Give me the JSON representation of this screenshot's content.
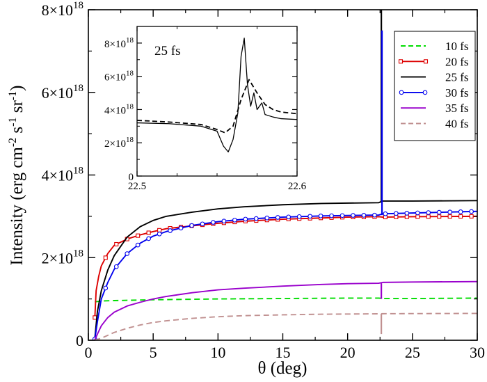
{
  "chart_data": [
    {
      "type": "line",
      "xlabel": "θ (deg)",
      "ylabel": "Intensity (erg cm⁻² s⁻¹ sr⁻¹)",
      "ylabel_parts": {
        "base": "Intensity (erg cm",
        "e1": "-2",
        "mid": " s",
        "e2": "-1",
        "mid2": " sr",
        "e3": "-1",
        "end": ")"
      },
      "xlim": [
        0,
        30
      ],
      "ylim": [
        0,
        8e+18
      ],
      "xticks": [
        0,
        5,
        10,
        15,
        20,
        25,
        30
      ],
      "yticks": [
        0,
        2e+18,
        4e+18,
        6e+18,
        8e+18
      ],
      "ytick_labels": [
        {
          "mant": "0",
          "exp": ""
        },
        {
          "mant": "2×10",
          "exp": "18"
        },
        {
          "mant": "4×10",
          "exp": "18"
        },
        {
          "mant": "6×10",
          "exp": "18"
        },
        {
          "mant": "8×10",
          "exp": "18"
        }
      ],
      "legend_position": "top-right",
      "series": [
        {
          "name": "10 fs",
          "color": "#00dd00",
          "dash": "dashed",
          "marker": "none",
          "x": [
            0.5,
            1,
            2,
            5,
            10,
            15,
            20,
            22.4,
            22.7,
            25,
            30
          ],
          "y": [
            9.3e+17,
            9.5e+17,
            9.6e+17,
            9.8e+17,
            1e+18,
            1.01e+18,
            1.02e+18,
            1.02e+18,
            1.01e+18,
            1.01e+18,
            1.02e+18
          ]
        },
        {
          "name": "20 fs",
          "color": "#dd0000",
          "dash": "solid",
          "marker": "square",
          "x": [
            0.5,
            0.6,
            0.8,
            1,
            1.5,
            2,
            3,
            4,
            5,
            6,
            8,
            10,
            12,
            15,
            18,
            20,
            22.4,
            22.7,
            25,
            30
          ],
          "y": [
            5.5e+17,
            1.2e+18,
            1.55e+18,
            1.8e+18,
            2.1e+18,
            2.3e+18,
            2.45e+18,
            2.55e+18,
            2.63e+18,
            2.7e+18,
            2.77e+18,
            2.83e+18,
            2.88e+18,
            2.93e+18,
            2.96e+18,
            2.98e+18,
            2.99e+18,
            2.98e+18,
            2.99e+18,
            3e+18
          ]
        },
        {
          "name": "25 fs",
          "color": "#000000",
          "dash": "solid",
          "marker": "none",
          "x": [
            0.5,
            0.7,
            1,
            1.5,
            2,
            3,
            4,
            5,
            6,
            8,
            10,
            12,
            15,
            18,
            20,
            22.4,
            22.7,
            25,
            30
          ],
          "y": [
            5e+16,
            7e+17,
            1.2e+18,
            1.7e+18,
            2.05e+18,
            2.5e+18,
            2.75e+18,
            2.9e+18,
            3e+18,
            3.1e+18,
            3.18e+18,
            3.23e+18,
            3.28e+18,
            3.31e+18,
            3.32e+18,
            3.33e+18,
            3.37e+18,
            3.37e+18,
            3.38e+18
          ]
        },
        {
          "name": "30 fs",
          "color": "#0000ee",
          "dash": "solid",
          "marker": "circle",
          "x": [
            0.5,
            0.7,
            1,
            1.5,
            2,
            3,
            4,
            5,
            6,
            8,
            10,
            12,
            15,
            18,
            20,
            22.4,
            22.7,
            25,
            30
          ],
          "y": [
            3e+16,
            4.5e+17,
            1e+18,
            1.4e+18,
            1.72e+18,
            2.1e+18,
            2.35e+18,
            2.52e+18,
            2.63e+18,
            2.78e+18,
            2.87e+18,
            2.93e+18,
            2.98e+18,
            3.01e+18,
            3.02e+18,
            3.03e+18,
            3.06e+18,
            3.08e+18,
            3.12e+18
          ]
        },
        {
          "name": "35 fs",
          "color": "#9900cc",
          "dash": "solid",
          "marker": "none",
          "x": [
            0.5,
            0.7,
            1,
            1.5,
            2,
            3,
            4,
            5,
            6,
            8,
            10,
            12,
            15,
            18,
            20,
            22.4,
            22.7,
            25,
            30
          ],
          "y": [
            1e+16,
            1.5e+17,
            3.5e+17,
            5.5e+17,
            6.8e+17,
            8.3e+17,
            9.2e+17,
            1e+18,
            1.06e+18,
            1.15e+18,
            1.22e+18,
            1.26e+18,
            1.31e+18,
            1.35e+18,
            1.37e+18,
            1.38e+18,
            1.4e+18,
            1.41e+18,
            1.42e+18
          ]
        },
        {
          "name": "40 fs",
          "color": "#c09090",
          "dash": "dashed",
          "marker": "none",
          "x": [
            0.5,
            1,
            2,
            3,
            4,
            5,
            6,
            8,
            10,
            12,
            15,
            18,
            20,
            22.4,
            22.7,
            25,
            30
          ],
          "y": [
            0,
            5e+16,
            1.9e+17,
            2.9e+17,
            3.7e+17,
            4.3e+17,
            4.7e+17,
            5.3e+17,
            5.7e+17,
            5.95e+17,
            6.15e+17,
            6.3e+17,
            6.35e+17,
            6.4e+17,
            6.42e+17,
            6.45e+17,
            6.5e+17
          ]
        }
      ],
      "spikes": [
        {
          "series": "25 fs",
          "x": 22.6,
          "y": 8e+18
        },
        {
          "series": "30 fs",
          "x": 22.65,
          "y": 7.5e+18
        },
        {
          "series": "35 fs",
          "x": 22.6,
          "y": 1e+18
        },
        {
          "series": "40 fs",
          "x": 22.6,
          "y": 1.5e+17
        }
      ]
    },
    {
      "type": "line",
      "inset": true,
      "label": "25 fs",
      "xlim": [
        22.5,
        22.6
      ],
      "ylim": [
        0,
        9e+18
      ],
      "xticks": [
        22.5,
        22.6
      ],
      "yticks": [
        0,
        2e+18,
        4e+18,
        6e+18,
        8e+18
      ],
      "ytick_labels": [
        {
          "mant": "0",
          "exp": ""
        },
        {
          "mant": "2×10",
          "exp": "18"
        },
        {
          "mant": "4×10",
          "exp": "18"
        },
        {
          "mant": "6×10",
          "exp": "18"
        },
        {
          "mant": "8×10",
          "exp": "18"
        }
      ],
      "series": [
        {
          "style": "dashed",
          "color": "#000000",
          "x": [
            22.5,
            22.52,
            22.54,
            22.55,
            22.555,
            22.56,
            22.565,
            22.57,
            22.575,
            22.58,
            22.585,
            22.59,
            22.6
          ],
          "y": [
            3.35e+18,
            3.25e+18,
            3.1e+18,
            2.8e+18,
            2.6e+18,
            3e+18,
            4.6e+18,
            5.8e+18,
            5e+18,
            4.3e+18,
            4e+18,
            3.85e+18,
            3.75e+18
          ]
        },
        {
          "style": "solid",
          "color": "#000000",
          "x": [
            22.5,
            22.52,
            22.54,
            22.55,
            22.554,
            22.557,
            22.56,
            22.563,
            22.565,
            22.567,
            22.569,
            22.571,
            22.573,
            22.575,
            22.578,
            22.58,
            22.585,
            22.59,
            22.6
          ],
          "y": [
            3.2e+18,
            3.15e+18,
            3e+18,
            2.7e+18,
            1.8e+18,
            1.45e+18,
            2.2e+18,
            3.8e+18,
            7.2e+18,
            8.3e+18,
            5.5e+18,
            4.2e+18,
            5e+18,
            4e+18,
            4.4e+18,
            3.7e+18,
            3.55e+18,
            3.45e+18,
            3.4e+18
          ]
        }
      ]
    }
  ]
}
